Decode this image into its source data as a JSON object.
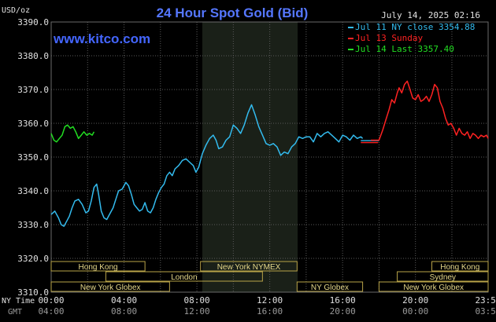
{
  "chart_data": {
    "type": "line",
    "title": "24 Hour Spot Gold (Bid)",
    "source": "www.kitco.com",
    "timestamp": "July 14, 2025 02:16",
    "y_unit": "USD/oz",
    "ylim": [
      3310,
      3390
    ],
    "yticks": [
      "3390.0",
      "3380.0",
      "3370.0",
      "3360.0",
      "3350.0",
      "3340.0",
      "3330.0",
      "3320.0",
      "3310.0"
    ],
    "grid": true,
    "legend_position": "top-right",
    "time_label_ny": "NY Time",
    "time_label_gmt": "GMT",
    "xticks_ny": [
      "00:00",
      "04:00",
      "08:00",
      "12:00",
      "16:00",
      "20:00",
      "23:59"
    ],
    "xticks_gmt": [
      "04:00",
      "08:00",
      "12:00",
      "16:00",
      "20:00",
      "00:00",
      "03:59"
    ],
    "sessions": [
      {
        "label": "Hong Kong",
        "start": 0.0,
        "end": 5.15
      },
      {
        "label": "London",
        "start": 3.0,
        "end": 11.6
      },
      {
        "label": "New York Globex",
        "start": 0.0,
        "end": 6.5
      },
      {
        "label": "New York NYMEX",
        "start": 8.2,
        "end": 13.5
      },
      {
        "label": "NY Globex",
        "start": 13.5,
        "end": 17.1
      },
      {
        "label": "Hong Kong",
        "start": 20.9,
        "end": 23.99
      },
      {
        "label": "Sydney",
        "start": 19.0,
        "end": 23.99
      },
      {
        "label": "New York Globex",
        "start": 18.0,
        "end": 23.99
      }
    ],
    "series": [
      {
        "name": "Jul 11 NY close 3354.88",
        "color": "#33bbee",
        "x": [
          0.0,
          0.2,
          0.4,
          0.55,
          0.7,
          0.85,
          1.0,
          1.15,
          1.3,
          1.5,
          1.7,
          1.9,
          2.05,
          2.2,
          2.35,
          2.5,
          2.6,
          2.75,
          2.9,
          3.05,
          3.2,
          3.4,
          3.55,
          3.7,
          3.9,
          4.1,
          4.25,
          4.4,
          4.55,
          4.7,
          4.85,
          5.0,
          5.15,
          5.3,
          5.45,
          5.6,
          5.75,
          5.9,
          6.05,
          6.2,
          6.35,
          6.5,
          6.65,
          6.8,
          7.0,
          7.2,
          7.4,
          7.6,
          7.8,
          7.95,
          8.1,
          8.3,
          8.5,
          8.7,
          8.9,
          9.05,
          9.2,
          9.4,
          9.6,
          9.8,
          10.0,
          10.2,
          10.4,
          10.6,
          10.8,
          11.0,
          11.2,
          11.4,
          11.6,
          11.8,
          12.0,
          12.2,
          12.4,
          12.6,
          12.8,
          13.0,
          13.2,
          13.4,
          13.6,
          13.8,
          14.0,
          14.2,
          14.4,
          14.6,
          14.8,
          15.0,
          15.2,
          15.4,
          15.6,
          15.8,
          16.0,
          16.2,
          16.4,
          16.6,
          16.8,
          17.0,
          17.1
        ],
        "y": [
          3333.0,
          3334.0,
          3332.0,
          3330.0,
          3329.5,
          3331.0,
          3332.5,
          3335.0,
          3337.0,
          3337.5,
          3336.0,
          3333.5,
          3334.0,
          3337.0,
          3341.0,
          3342.0,
          3339.0,
          3334.0,
          3332.0,
          3331.5,
          3333.0,
          3335.0,
          3337.5,
          3340.0,
          3340.5,
          3342.5,
          3341.5,
          3339.0,
          3336.0,
          3335.0,
          3334.0,
          3334.5,
          3336.5,
          3334.0,
          3333.5,
          3335.0,
          3337.5,
          3339.5,
          3341.0,
          3342.0,
          3344.5,
          3345.5,
          3344.5,
          3346.5,
          3347.5,
          3349.0,
          3349.5,
          3348.5,
          3347.5,
          3345.5,
          3347.0,
          3351.0,
          3353.5,
          3355.5,
          3356.5,
          3355.0,
          3352.5,
          3353.0,
          3355.0,
          3356.0,
          3359.5,
          3358.5,
          3357.0,
          3359.5,
          3363.0,
          3365.5,
          3362.5,
          3359.0,
          3356.5,
          3354.0,
          3353.5,
          3354.0,
          3353.0,
          3350.5,
          3351.5,
          3351.0,
          3353.0,
          3354.0,
          3356.0,
          3355.5,
          3356.0,
          3356.0,
          3354.5,
          3357.0,
          3356.0,
          3357.0,
          3357.5,
          3356.5,
          3355.5,
          3354.5,
          3356.5,
          3356.0,
          3355.0,
          3356.5,
          3355.5,
          3356.0,
          3355.5
        ]
      },
      {
        "name": "Jul 13 Sunday",
        "color": "#ff2222",
        "x": [
          17.55,
          17.8,
          18.0,
          18.2,
          18.4,
          18.55,
          18.7,
          18.85,
          19.0,
          19.1,
          19.25,
          19.4,
          19.55,
          19.7,
          19.85,
          20.0,
          20.15,
          20.3,
          20.45,
          20.6,
          20.75,
          20.9,
          21.05,
          21.2,
          21.35,
          21.5,
          21.65,
          21.8,
          21.95,
          22.1,
          22.25,
          22.4,
          22.55,
          22.7,
          22.85,
          23.0,
          23.15,
          23.3,
          23.45,
          23.6,
          23.75,
          23.9,
          23.99
        ],
        "y": [
          3355.0,
          3355.0,
          3355.0,
          3358.0,
          3361.5,
          3364.0,
          3367.0,
          3366.0,
          3369.0,
          3370.5,
          3369.0,
          3371.5,
          3372.5,
          3370.0,
          3367.5,
          3367.0,
          3368.5,
          3366.5,
          3367.0,
          3368.0,
          3366.5,
          3368.5,
          3371.5,
          3370.5,
          3366.5,
          3364.5,
          3361.5,
          3359.5,
          3360.0,
          3358.5,
          3356.5,
          3358.5,
          3357.0,
          3356.5,
          3357.5,
          3355.5,
          3357.0,
          3356.5,
          3355.5,
          3356.5,
          3356.0,
          3356.5,
          3355.5
        ]
      },
      {
        "name": "Jul 14 Last 3357.40",
        "color": "#22dd22",
        "x": [
          0.0,
          0.15,
          0.3,
          0.45,
          0.6,
          0.75,
          0.9,
          1.05,
          1.2,
          1.35,
          1.5,
          1.65,
          1.8,
          1.95,
          2.1,
          2.25,
          2.35
        ],
        "y": [
          3357.0,
          3355.0,
          3354.5,
          3355.5,
          3356.5,
          3359.0,
          3359.5,
          3358.5,
          3359.0,
          3357.5,
          3355.5,
          3356.5,
          3357.5,
          3356.5,
          3357.0,
          3356.5,
          3357.5
        ]
      }
    ],
    "close_line": {
      "value": 3354.88,
      "x_start": 17.0,
      "x_end": 18.0
    }
  }
}
